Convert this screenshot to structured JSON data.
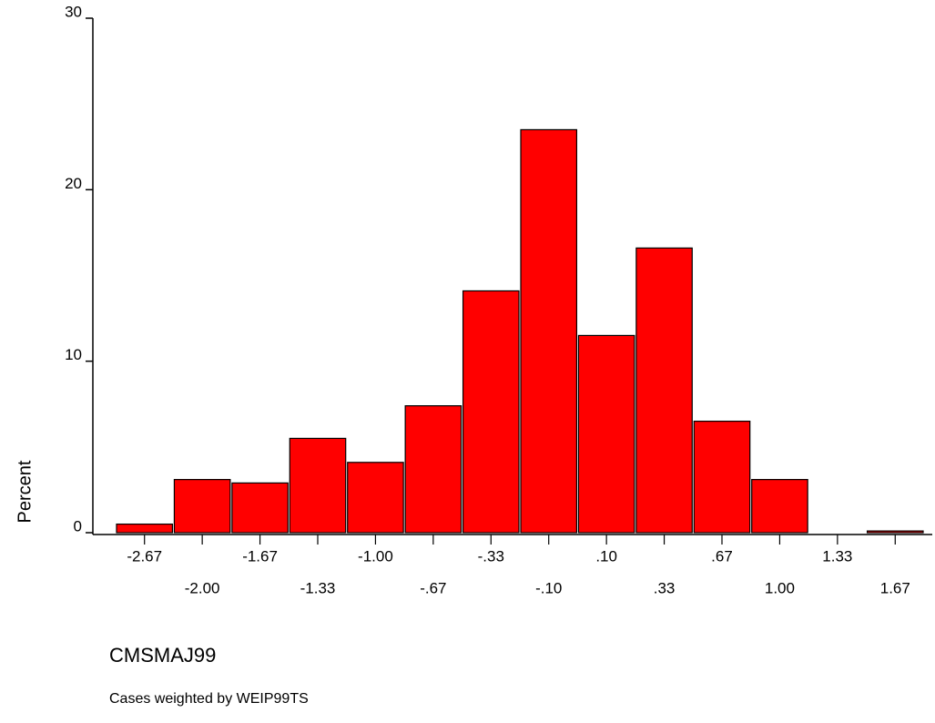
{
  "chart_data": {
    "type": "bar",
    "y_label": "Percent",
    "x_label": "CMSMAJ99",
    "footnote": "Cases weighted by WEIP99TS",
    "categories": [
      "-2.67",
      "-2.00",
      "-1.67",
      "-1.33",
      "-1.00",
      "-.67",
      "-.33",
      "-.10",
      ".10",
      ".33",
      ".67",
      "1.00",
      "1.33",
      "1.67"
    ],
    "values": [
      0.5,
      3.1,
      2.9,
      5.5,
      4.1,
      7.4,
      14.1,
      23.5,
      11.5,
      16.6,
      6.5,
      3.1,
      0,
      0.1
    ],
    "color": "#ff0000",
    "ylim": [
      0,
      30
    ],
    "yticks": [
      0,
      10,
      20,
      30
    ]
  }
}
